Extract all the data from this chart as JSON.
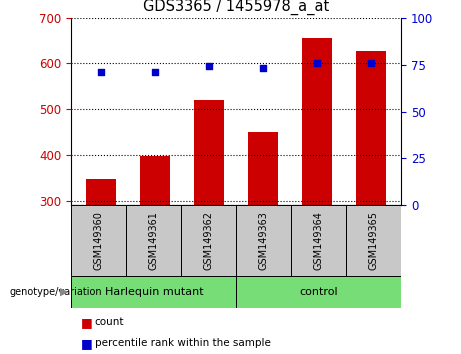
{
  "title": "GDS3365 / 1455978_a_at",
  "samples": [
    "GSM149360",
    "GSM149361",
    "GSM149362",
    "GSM149363",
    "GSM149364",
    "GSM149365"
  ],
  "counts": [
    347,
    397,
    520,
    450,
    655,
    628
  ],
  "percentile_ranks": [
    71,
    71,
    74,
    73,
    76,
    76
  ],
  "ylim_left": [
    290,
    700
  ],
  "ylim_right": [
    0,
    100
  ],
  "yticks_left": [
    300,
    400,
    500,
    600,
    700
  ],
  "yticks_right": [
    0,
    25,
    50,
    75,
    100
  ],
  "bar_color": "#CC0000",
  "dot_color": "#0000CC",
  "bar_bottom": 290,
  "bar_color_legend": "#DD0000",
  "grid_color": "black",
  "background_label": "#C8C8C8",
  "background_group": "#77DD77",
  "harlequin_label": "Harlequin mutant",
  "control_label": "control",
  "genotype_label": "genotype/variation",
  "legend_count": "count",
  "legend_pct": "percentile rank within the sample"
}
